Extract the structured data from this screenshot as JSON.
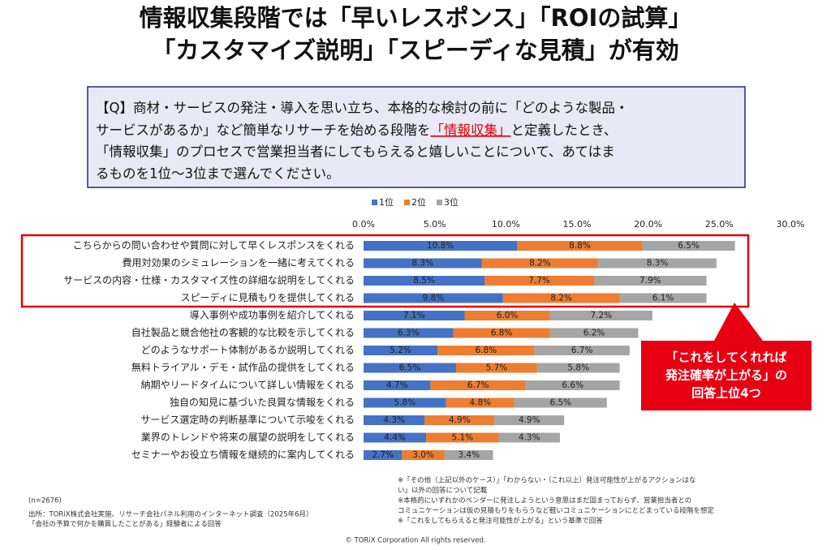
{
  "title_lines": [
    "情報収集段階では「早いレスポンス」「ROIの試算」",
    "「カスタマイズ説明」「スピーディな見積」が有効"
  ],
  "question": {
    "line1": "【Q】商材・サービスの発注・導入を思い立ち、本格的な検討の前に「どのような製品・",
    "line2_pre": "サービスがあるか」など簡単なリサーチを始める段階を",
    "line2_highlight": "「情報収集」",
    "line2_post": "と定義したとき、",
    "line3": "「情報収集」のプロセスで営業担当者にしてもらえると嬉しいことについて、あてはま",
    "line4": "るものを1位～3位まで選んでください。"
  },
  "chart_data": {
    "type": "stacked-bar-horizontal",
    "categories": [
      "こちらからの問い合わせや質問に対して早くレスポンスをくれる",
      "費用対効果のシミュレーションを一緒に考えてくれる",
      "サービスの内容・仕様・カスタマイズ性の詳細な説明をしてくれる",
      "スピーディに見積もりを提供してくれる",
      "導入事例や成功事例を紹介してくれる",
      "自社製品と競合他社の客観的な比較を示してくれる",
      "どのようなサポート体制があるか説明してくれる",
      "無料トライアル・デモ・試作品の提供をしてくれる",
      "納期やリードタイムについて詳しい情報をくれる",
      "独自の知見に基づいた良質な情報をくれる",
      "サービス選定時の判断基準について示唆をくれる",
      "業界のトレンドや将来の展望の説明をしてくれる",
      "セミナーやお役立ち情報を継続的に案内してくれる"
    ],
    "series": [
      {
        "name": "1位",
        "color": "#4472c4",
        "values": [
          10.8,
          8.3,
          8.5,
          9.8,
          7.1,
          6.3,
          5.2,
          6.5,
          4.7,
          5.8,
          4.3,
          4.4,
          2.7
        ],
        "value_labels": [
          "10.8%",
          "8.3%",
          "8.5%",
          "9.8%",
          "7.1%",
          "6.3%",
          "5.2%",
          "6.5%",
          "4.7%",
          "5.8%",
          "4.3%",
          "4.4%",
          "2.7%"
        ]
      },
      {
        "name": "2位",
        "color": "#ed7d31",
        "values": [
          8.8,
          8.2,
          7.7,
          8.2,
          6.0,
          6.8,
          6.8,
          5.7,
          6.7,
          4.8,
          4.9,
          5.1,
          3.0
        ],
        "value_labels": [
          "8.8%",
          "8.2%",
          "7.7%",
          "8.2%",
          "6.0%",
          "6.8%",
          "6.8%",
          "5.7%",
          "6.7%",
          "4.8%",
          "4.9%",
          "5.1%",
          "3.0%"
        ]
      },
      {
        "name": "3位",
        "color": "#a5a5a5",
        "values": [
          6.5,
          8.3,
          7.9,
          6.1,
          7.2,
          6.2,
          6.7,
          5.8,
          6.6,
          6.5,
          4.9,
          4.3,
          3.4
        ],
        "value_labels": [
          "6.5%",
          "8.3%",
          "7.9%",
          "6.1%",
          "7.2%",
          "6.2%",
          "6.7%",
          "5.8%",
          "6.6%",
          "6.5%",
          "4.9%",
          "4.3%",
          "3.4%"
        ]
      }
    ],
    "xlim": [
      0,
      30
    ],
    "xticks": [
      {
        "value": 0,
        "label": "0.0%"
      },
      {
        "value": 5,
        "label": "5.0%"
      },
      {
        "value": 10,
        "label": "10.0%"
      },
      {
        "value": 15,
        "label": "15.0%"
      },
      {
        "value": 20,
        "label": "20.0%"
      },
      {
        "value": 25,
        "label": "25.0%"
      },
      {
        "value": 30,
        "label": "30.0%"
      }
    ],
    "legend": "top"
  },
  "callout": [
    "「これをしてくれれば",
    "発注確率が上がる」の",
    "回答上位4つ"
  ],
  "notes": [
    "※「その他（上記以外のケース）」「わからない・（これ以上）発注可能性が上がるアクションはな",
    "い」以外の回答について記載",
    "※本格的にいずれかのベンダーに発注しようという意思はまだ固まっておらず、営業担当者との",
    "コミュニケーションは仮の見積もりをもらうなど軽いコミュニケーションにとどまっている段階を想定",
    "※「これをしてもらえると発注可能性が上がる」という基準で回答"
  ],
  "sample": "(n=2676)",
  "source": [
    "出所：TORiX株式会社実施、リサーチ会社パネル利用のインターネット調査（2025年6月）",
    "「会社の予算で何かを購買したことがある」経験者による回答"
  ],
  "copyright": "© TORiX Corporation All rights reserved."
}
